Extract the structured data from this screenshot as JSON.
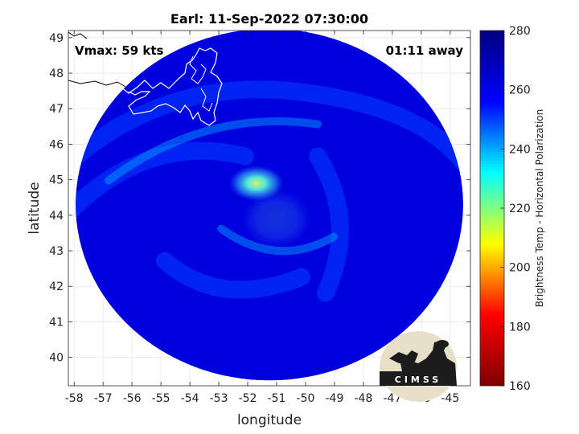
{
  "chart_data": {
    "type": "heatmap",
    "title": "Earl: 11-Sep-2022 07:30:00",
    "xlabel": "longitude",
    "ylabel": "latitude",
    "xlim": [
      -58.2,
      -44.3
    ],
    "ylim": [
      39.2,
      49.2
    ],
    "xticks": [
      -58,
      -57,
      -56,
      -55,
      -54,
      -53,
      -52,
      -51,
      -50,
      -49,
      -48,
      -47,
      -46,
      -45
    ],
    "yticks": [
      40,
      41,
      42,
      43,
      44,
      45,
      46,
      47,
      48,
      49
    ],
    "grid": true,
    "annotations": {
      "vmax": "Vmax: 59 kts",
      "time_away": "01:11 away"
    },
    "colorbar": {
      "label": "Brightness Temp - Horizontal Polarization",
      "min": 160,
      "max": 280,
      "ticks": [
        160,
        180,
        200,
        220,
        240,
        260,
        280
      ],
      "colormap": [
        "#7f0000",
        "#ff0000",
        "#ffff00",
        "#00ffff",
        "#0000ff",
        "#00007f"
      ]
    },
    "swath": {
      "center_lon": -51.25,
      "center_lat": 44.3,
      "radius_deg_lon": 6.7,
      "radius_deg_lat": 4.95,
      "background_value": 262
    },
    "features": [
      {
        "name": "storm-center",
        "lon": -51.0,
        "lat": 43.9,
        "value": 266
      },
      {
        "name": "warm-spot",
        "lon": -51.7,
        "lat": 44.9,
        "value": 238
      }
    ],
    "logo": "CIMSS"
  }
}
